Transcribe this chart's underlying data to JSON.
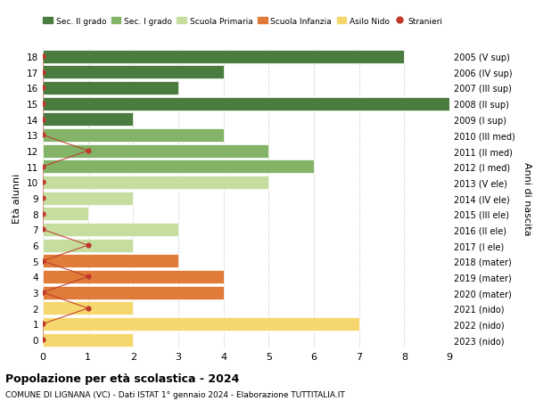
{
  "ages": [
    18,
    17,
    16,
    15,
    14,
    13,
    12,
    11,
    10,
    9,
    8,
    7,
    6,
    5,
    4,
    3,
    2,
    1,
    0
  ],
  "years": [
    "2005 (V sup)",
    "2006 (IV sup)",
    "2007 (III sup)",
    "2008 (II sup)",
    "2009 (I sup)",
    "2010 (III med)",
    "2011 (II med)",
    "2012 (I med)",
    "2013 (V ele)",
    "2014 (IV ele)",
    "2015 (III ele)",
    "2016 (II ele)",
    "2017 (I ele)",
    "2018 (mater)",
    "2019 (mater)",
    "2020 (mater)",
    "2021 (nido)",
    "2022 (nido)",
    "2023 (nido)"
  ],
  "values": [
    8,
    4,
    3,
    9,
    2,
    4,
    5,
    6,
    5,
    2,
    1,
    3,
    2,
    3,
    4,
    4,
    2,
    7,
    2
  ],
  "bar_colors": [
    "#4a7c3f",
    "#4a7c3f",
    "#4a7c3f",
    "#4a7c3f",
    "#4a7c3f",
    "#82b366",
    "#82b366",
    "#82b366",
    "#c5dea0",
    "#c5dea0",
    "#c5dea0",
    "#c5dea0",
    "#c5dea0",
    "#e07b39",
    "#e07b39",
    "#e07b39",
    "#f5d76e",
    "#f5d76e",
    "#f5d76e"
  ],
  "stranieri_vals": [
    0,
    0,
    0,
    0,
    0,
    0,
    1,
    0,
    0,
    0,
    0,
    0,
    1,
    0,
    1,
    0,
    1,
    0,
    0
  ],
  "legend_labels": [
    "Sec. II grado",
    "Sec. I grado",
    "Scuola Primaria",
    "Scuola Infanzia",
    "Asilo Nido",
    "Stranieri"
  ],
  "legend_colors": [
    "#4a7c3f",
    "#82b366",
    "#c5dea0",
    "#e07b39",
    "#f5d76e",
    "#c0392b"
  ],
  "ylabel_left": "Età alunni",
  "ylabel_right": "Anni di nascita",
  "title": "Popolazione per età scolastica - 2024",
  "subtitle": "COMUNE DI LIGNANA (VC) - Dati ISTAT 1° gennaio 2024 - Elaborazione TUTTITALIA.IT",
  "xlim": [
    0,
    9
  ],
  "bg_color": "#ffffff",
  "grid_color": "#cccccc",
  "bar_height": 0.85,
  "stranieri_color": "#c0392b",
  "stranieri_line_color": "#c0392b"
}
